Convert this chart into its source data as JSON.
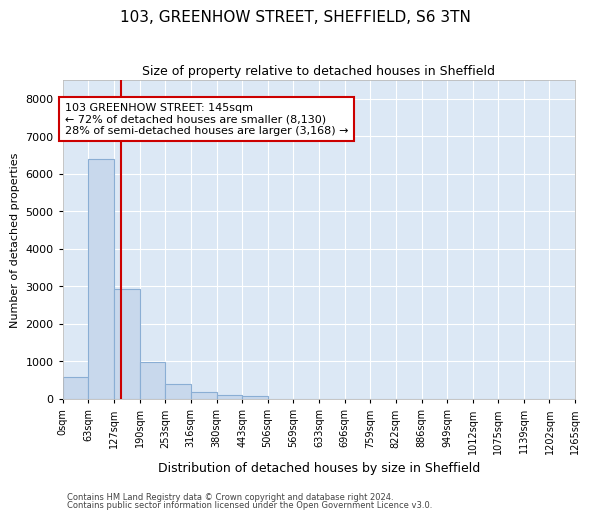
{
  "title_line1": "103, GREENHOW STREET, SHEFFIELD, S6 3TN",
  "title_line2": "Size of property relative to detached houses in Sheffield",
  "xlabel": "Distribution of detached houses by size in Sheffield",
  "ylabel": "Number of detached properties",
  "bin_edges": [
    0,
    63,
    127,
    190,
    253,
    316,
    380,
    443,
    506,
    569,
    633,
    696,
    759,
    822,
    886,
    949,
    1012,
    1075,
    1139,
    1202,
    1265
  ],
  "bar_heights": [
    570,
    6400,
    2920,
    970,
    380,
    170,
    100,
    70,
    0,
    0,
    0,
    0,
    0,
    0,
    0,
    0,
    0,
    0,
    0,
    0
  ],
  "bar_color": "#c8d8ec",
  "bar_edge_color": "#8aaed4",
  "property_size": 145,
  "vline_color": "#cc0000",
  "annotation_line1": "103 GREENHOW STREET: 145sqm",
  "annotation_line2": "← 72% of detached houses are smaller (8,130)",
  "annotation_line3": "28% of semi-detached houses are larger (3,168) →",
  "annotation_box_color": "#ffffff",
  "annotation_box_edge": "#cc0000",
  "ylim_max": 8500,
  "yticks": [
    0,
    1000,
    2000,
    3000,
    4000,
    5000,
    6000,
    7000,
    8000
  ],
  "plot_bg_color": "#dce8f5",
  "grid_color": "#ffffff",
  "footer_line1": "Contains HM Land Registry data © Crown copyright and database right 2024.",
  "footer_line2": "Contains public sector information licensed under the Open Government Licence v3.0."
}
